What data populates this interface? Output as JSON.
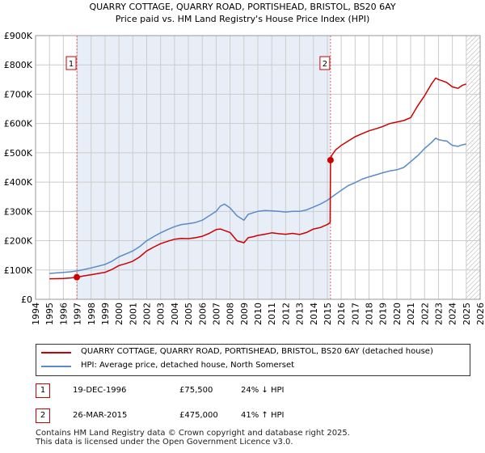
{
  "header": {
    "title": "QUARRY COTTAGE, QUARRY ROAD, PORTISHEAD, BRISTOL, BS20 6AY",
    "subtitle": "Price paid vs. HM Land Registry's House Price Index (HPI)"
  },
  "colors": {
    "property": "#cc0000",
    "hpi": "#5b8ac8",
    "shade": "#e8eef8",
    "grid": "#cccccc",
    "marker_line": "#e06a6a"
  },
  "chart_data": {
    "type": "line",
    "title": "QUARRY COTTAGE, QUARRY ROAD, PORTISHEAD, BRISTOL, BS20 6AY",
    "subtitle": "Price paid vs. HM Land Registry's House Price Index (HPI)",
    "xlim": [
      1994,
      2026
    ],
    "ylim": [
      0,
      900000
    ],
    "x_ticks": [
      1994,
      1995,
      1996,
      1997,
      1998,
      1999,
      2000,
      2001,
      2002,
      2003,
      2004,
      2005,
      2006,
      2007,
      2008,
      2009,
      2010,
      2011,
      2012,
      2013,
      2014,
      2015,
      2016,
      2017,
      2018,
      2019,
      2020,
      2021,
      2022,
      2023,
      2024,
      2025,
      2026
    ],
    "y_ticks": [
      {
        "value": 0,
        "label": "£0"
      },
      {
        "value": 100000,
        "label": "£100K"
      },
      {
        "value": 200000,
        "label": "£200K"
      },
      {
        "value": 300000,
        "label": "£300K"
      },
      {
        "value": 400000,
        "label": "£400K"
      },
      {
        "value": 500000,
        "label": "£500K"
      },
      {
        "value": 600000,
        "label": "£600K"
      },
      {
        "value": 700000,
        "label": "£700K"
      },
      {
        "value": 800000,
        "label": "£800K"
      },
      {
        "value": 900000,
        "label": "£900K"
      }
    ],
    "grid": true,
    "shaded_range": [
      1996.97,
      2015.23
    ],
    "hatched_after": 2025.0,
    "markers": [
      {
        "label": "1",
        "x": 1996.97,
        "y": 75500
      },
      {
        "label": "2",
        "x": 2015.23,
        "y": 475000
      }
    ],
    "series": [
      {
        "name": "QUARRY COTTAGE, QUARRY ROAD, PORTISHEAD, BRISTOL, BS20 6AY (detached house)",
        "color": "#cc0000",
        "x": [
          1995.0,
          1995.5,
          1996.0,
          1996.5,
          1996.97,
          1997.5,
          1998.0,
          1998.5,
          1999.0,
          1999.5,
          2000.0,
          2000.5,
          2001.0,
          2001.5,
          2002.0,
          2002.5,
          2003.0,
          2003.5,
          2004.0,
          2004.5,
          2005.0,
          2005.5,
          2006.0,
          2006.5,
          2007.0,
          2007.3,
          2007.6,
          2008.0,
          2008.5,
          2009.0,
          2009.3,
          2009.7,
          2010.0,
          2010.5,
          2011.0,
          2011.5,
          2012.0,
          2012.5,
          2013.0,
          2013.5,
          2014.0,
          2014.5,
          2015.0,
          2015.2,
          2015.23,
          2015.3,
          2015.6,
          2016.0,
          2016.5,
          2017.0,
          2017.5,
          2018.0,
          2018.5,
          2019.0,
          2019.5,
          2020.0,
          2020.5,
          2021.0,
          2021.5,
          2022.0,
          2022.5,
          2022.8,
          2023.0,
          2023.3,
          2023.6,
          2024.0,
          2024.4,
          2024.7,
          2025.0
        ],
        "y": [
          70000,
          70500,
          71000,
          73000,
          75500,
          80000,
          84000,
          88000,
          92000,
          102000,
          115000,
          122000,
          130000,
          145000,
          165000,
          178000,
          190000,
          198000,
          205000,
          208000,
          207000,
          210000,
          215000,
          225000,
          238000,
          240000,
          235000,
          228000,
          200000,
          193000,
          210000,
          214000,
          218000,
          222000,
          227000,
          224000,
          222000,
          225000,
          221000,
          228000,
          240000,
          245000,
          255000,
          262000,
          475000,
          490000,
          510000,
          525000,
          540000,
          555000,
          565000,
          575000,
          582000,
          590000,
          600000,
          605000,
          610000,
          620000,
          660000,
          695000,
          735000,
          755000,
          750000,
          745000,
          740000,
          725000,
          720000,
          730000,
          735000
        ]
      },
      {
        "name": "HPI: Average price, detached house, North Somerset",
        "color": "#5b8ac8",
        "x": [
          1995.0,
          1995.5,
          1996.0,
          1996.5,
          1997.0,
          1997.5,
          1998.0,
          1998.5,
          1999.0,
          1999.5,
          2000.0,
          2000.5,
          2001.0,
          2001.5,
          2002.0,
          2002.5,
          2003.0,
          2003.5,
          2004.0,
          2004.5,
          2005.0,
          2005.5,
          2006.0,
          2006.5,
          2007.0,
          2007.3,
          2007.6,
          2008.0,
          2008.5,
          2009.0,
          2009.3,
          2009.7,
          2010.0,
          2010.5,
          2011.0,
          2011.5,
          2012.0,
          2012.5,
          2013.0,
          2013.5,
          2014.0,
          2014.5,
          2015.0,
          2015.5,
          2016.0,
          2016.5,
          2017.0,
          2017.5,
          2018.0,
          2018.5,
          2019.0,
          2019.5,
          2020.0,
          2020.5,
          2021.0,
          2021.5,
          2022.0,
          2022.5,
          2022.8,
          2023.0,
          2023.3,
          2023.6,
          2024.0,
          2024.4,
          2024.7,
          2025.0
        ],
        "y": [
          88000,
          90000,
          92000,
          94000,
          97000,
          102000,
          107000,
          113000,
          119000,
          130000,
          145000,
          155000,
          165000,
          180000,
          200000,
          214000,
          227000,
          238000,
          248000,
          255000,
          258000,
          262000,
          270000,
          285000,
          300000,
          318000,
          325000,
          312000,
          285000,
          270000,
          290000,
          296000,
          300000,
          303000,
          302000,
          300000,
          298000,
          300000,
          300000,
          305000,
          315000,
          325000,
          338000,
          355000,
          372000,
          388000,
          398000,
          410000,
          418000,
          425000,
          432000,
          438000,
          442000,
          450000,
          470000,
          490000,
          515000,
          535000,
          550000,
          545000,
          542000,
          540000,
          525000,
          522000,
          527000,
          530000
        ]
      }
    ]
  },
  "legend": {
    "property_label": "QUARRY COTTAGE, QUARRY ROAD, PORTISHEAD, BRISTOL, BS20 6AY (detached house)",
    "hpi_label": "HPI: Average price, detached house, North Somerset"
  },
  "sales": [
    {
      "num": "1",
      "date": "19-DEC-1996",
      "price": "£75,500",
      "hpi": "24% ↓ HPI"
    },
    {
      "num": "2",
      "date": "26-MAR-2015",
      "price": "£475,000",
      "hpi": "41% ↑ HPI"
    }
  ],
  "footer": {
    "line1": "Contains HM Land Registry data © Crown copyright and database right 2025.",
    "line2": "This data is licensed under the Open Government Licence v3.0."
  }
}
